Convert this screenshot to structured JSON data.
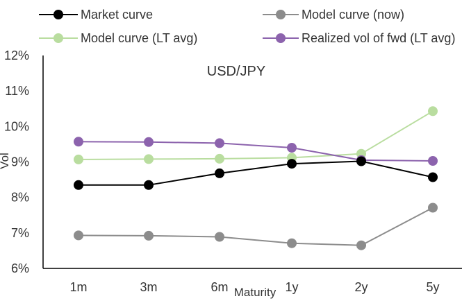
{
  "chart_data": {
    "type": "line",
    "title": "USD/JPY",
    "xlabel": "Maturity",
    "ylabel": "Vol",
    "categories": [
      "1m",
      "3m",
      "6m",
      "1y",
      "2y",
      "5y"
    ],
    "ylim": [
      6,
      12
    ],
    "yticks": [
      "6%",
      "7%",
      "8%",
      "9%",
      "10%",
      "11%",
      "12%"
    ],
    "grid": false,
    "legend_position": "top",
    "series": [
      {
        "name": "Market curve",
        "color": "#000000",
        "values": [
          8.35,
          8.35,
          8.68,
          8.95,
          9.02,
          8.57
        ]
      },
      {
        "name": "Model curve (now)",
        "color": "#8c8c8c",
        "values": [
          6.93,
          6.92,
          6.89,
          6.71,
          6.65,
          7.71
        ]
      },
      {
        "name": "Model curve (LT avg)",
        "color": "#b9dd9f",
        "values": [
          9.07,
          9.08,
          9.09,
          9.12,
          9.23,
          10.43
        ]
      },
      {
        "name": "Realized vol of fwd (LT avg)",
        "color": "#8c63ad",
        "values": [
          9.57,
          9.56,
          9.53,
          9.4,
          9.05,
          9.03
        ]
      }
    ]
  }
}
